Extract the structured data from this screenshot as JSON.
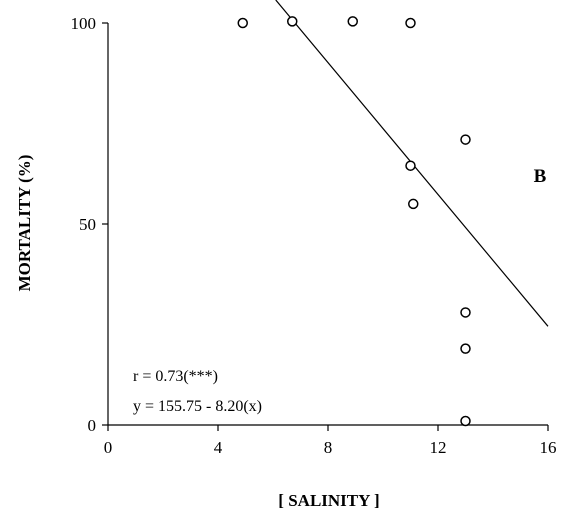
{
  "chart_data": {
    "type": "scatter",
    "title": "",
    "xlabel": "[ SALINITY ]",
    "ylabel": "MORTALITY (%)",
    "xlim": [
      0,
      16
    ],
    "ylim": [
      0,
      100
    ],
    "x_ticks": [
      0,
      4,
      8,
      12,
      16
    ],
    "y_ticks": [
      0,
      50,
      100
    ],
    "x_tick_labels": [
      "0",
      "4",
      "8",
      "12",
      "16"
    ],
    "y_tick_labels": [
      "0",
      "50",
      "100"
    ],
    "grid": false,
    "legend": "none",
    "panel_label": "B",
    "series": [
      {
        "values": [
          {
            "x": 4.9,
            "y": 100
          },
          {
            "x": 6.7,
            "y": 100.4
          },
          {
            "x": 8.9,
            "y": 100.4
          },
          {
            "x": 11.0,
            "y": 100
          },
          {
            "x": 13.0,
            "y": 71
          },
          {
            "x": 11.0,
            "y": 64.5
          },
          {
            "x": 11.1,
            "y": 55
          },
          {
            "x": 13.0,
            "y": 28
          },
          {
            "x": 13.0,
            "y": 19
          },
          {
            "x": 13.0,
            "y": 1
          }
        ]
      }
    ],
    "regression": {
      "intercept": 155.75,
      "slope": -8.2,
      "x_start": 6.1,
      "x_end": 16
    },
    "annotations": [
      "r = 0.73(***)",
      "y = 155.75 - 8.20(x)"
    ]
  }
}
